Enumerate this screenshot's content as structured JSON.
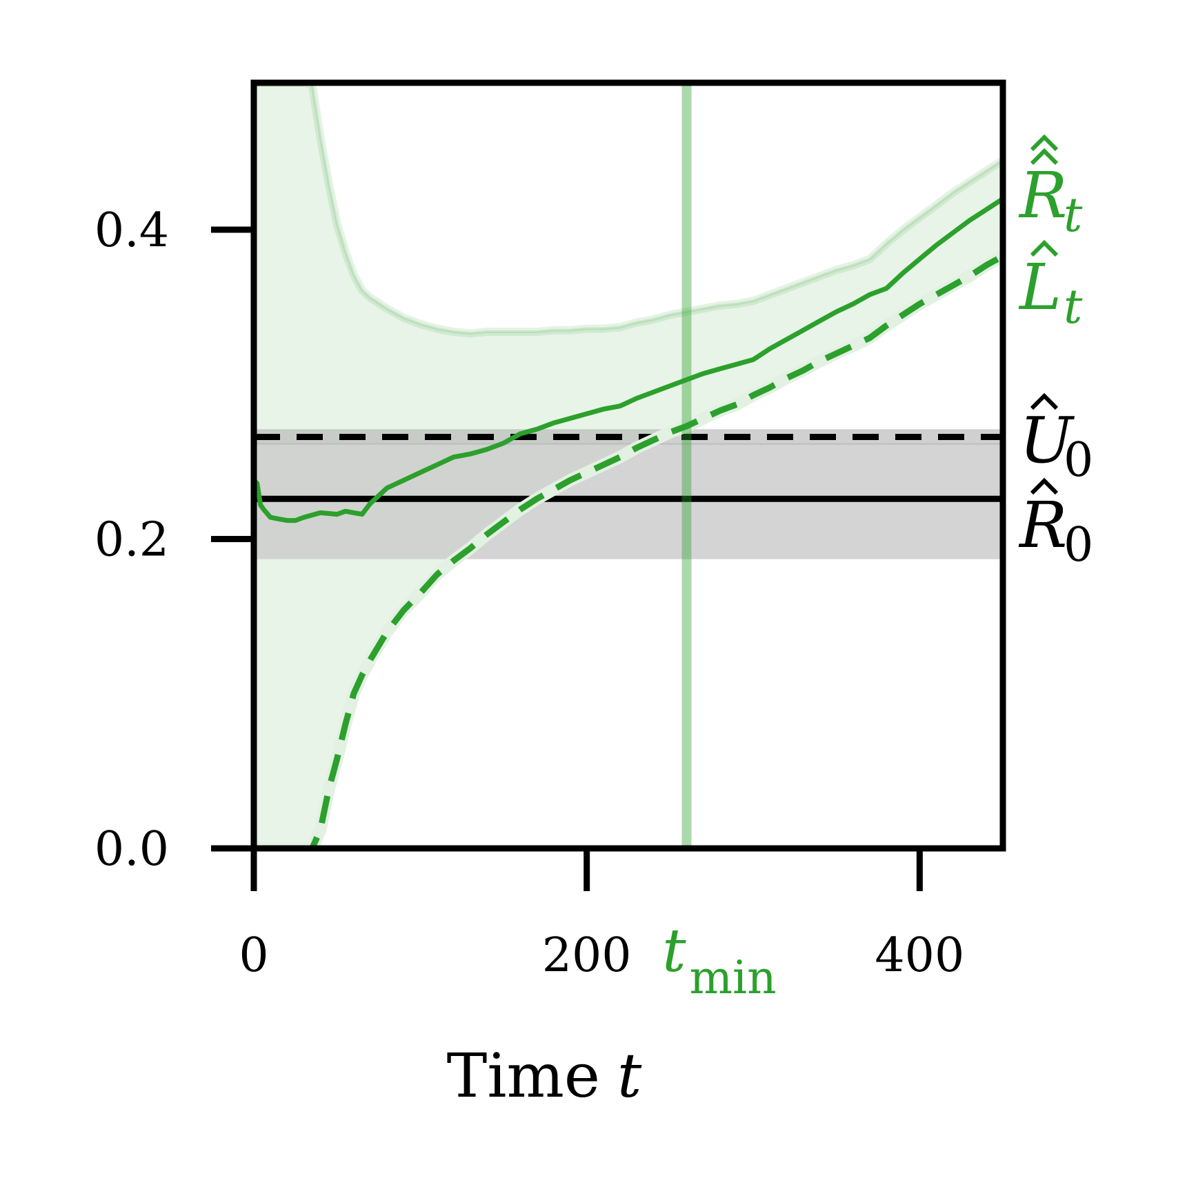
{
  "chart_data": {
    "type": "line",
    "xlabel": "Time",
    "xlabel_var": "t",
    "xlim": [
      0,
      450
    ],
    "ylim": [
      0.0,
      0.495
    ],
    "x_ticks": [
      0,
      200,
      400
    ],
    "x_tick_labels": [
      "0",
      "200",
      "400"
    ],
    "y_ticks": [
      0.0,
      0.2,
      0.4
    ],
    "y_tick_labels": [
      "0.0",
      "0.2",
      "0.4"
    ],
    "grid": false,
    "legend": "none",
    "colors": {
      "green": "#2ca02c",
      "green_band": "#e8f4e8",
      "gray_band": "#cccccc",
      "black": "#000000"
    },
    "t_min": {
      "x": 260,
      "label_main": "t",
      "label_sub": "min"
    },
    "reference_lines": [
      {
        "name": "U0",
        "label_main": "U",
        "label_sub": "0",
        "y": 0.266,
        "style": "dashed",
        "band": [
          0.261,
          0.271
        ]
      },
      {
        "name": "R0",
        "label_main": "R",
        "label_sub": "0",
        "y": 0.226,
        "style": "solid",
        "band": [
          0.187,
          0.262
        ]
      }
    ],
    "series": [
      {
        "name": "R_t",
        "label_main": "R",
        "label_sub": "t",
        "style": "solid",
        "x": [
          0,
          2,
          4,
          6,
          10,
          15,
          20,
          25,
          30,
          40,
          50,
          55,
          60,
          65,
          70,
          80,
          90,
          100,
          110,
          120,
          130,
          140,
          150,
          160,
          170,
          180,
          190,
          200,
          210,
          220,
          230,
          240,
          250,
          260,
          270,
          280,
          290,
          300,
          310,
          320,
          330,
          340,
          350,
          360,
          370,
          380,
          390,
          400,
          410,
          420,
          430,
          440,
          450
        ],
        "y": [
          0.238,
          0.236,
          0.222,
          0.219,
          0.214,
          0.213,
          0.212,
          0.212,
          0.214,
          0.217,
          0.216,
          0.218,
          0.217,
          0.216,
          0.223,
          0.233,
          0.238,
          0.243,
          0.248,
          0.253,
          0.255,
          0.258,
          0.262,
          0.268,
          0.271,
          0.275,
          0.278,
          0.281,
          0.284,
          0.286,
          0.291,
          0.295,
          0.299,
          0.303,
          0.307,
          0.31,
          0.313,
          0.316,
          0.323,
          0.329,
          0.335,
          0.341,
          0.347,
          0.352,
          0.358,
          0.362,
          0.372,
          0.381,
          0.39,
          0.398,
          0.406,
          0.413,
          0.42
        ]
      },
      {
        "name": "L_t",
        "label_main": "L",
        "label_sub": "t",
        "style": "dashed",
        "x": [
          0,
          10,
          20,
          30,
          35,
          40,
          45,
          50,
          55,
          60,
          65,
          70,
          80,
          90,
          100,
          110,
          120,
          130,
          140,
          150,
          160,
          170,
          180,
          190,
          200,
          210,
          220,
          230,
          240,
          250,
          260,
          270,
          280,
          290,
          300,
          310,
          320,
          330,
          340,
          350,
          360,
          370,
          380,
          390,
          400,
          410,
          420,
          430,
          440,
          450
        ],
        "y": [
          0.0,
          0.0,
          0.0,
          0.0,
          0.0,
          0.012,
          0.038,
          0.058,
          0.08,
          0.1,
          0.112,
          0.122,
          0.14,
          0.154,
          0.165,
          0.177,
          0.186,
          0.194,
          0.203,
          0.211,
          0.219,
          0.226,
          0.232,
          0.238,
          0.243,
          0.248,
          0.253,
          0.259,
          0.264,
          0.269,
          0.273,
          0.278,
          0.283,
          0.287,
          0.293,
          0.298,
          0.304,
          0.309,
          0.315,
          0.32,
          0.325,
          0.33,
          0.338,
          0.345,
          0.352,
          0.358,
          0.364,
          0.37,
          0.377,
          0.383
        ]
      },
      {
        "name": "R_t_upper",
        "label_main": "R",
        "label_sub": "t",
        "style": "band-upper",
        "x": [
          0,
          20,
          25,
          30,
          35,
          40,
          45,
          50,
          55,
          60,
          65,
          70,
          80,
          90,
          100,
          110,
          120,
          130,
          140,
          150,
          160,
          170,
          180,
          190,
          200,
          210,
          220,
          230,
          240,
          250,
          260,
          270,
          280,
          290,
          300,
          310,
          320,
          330,
          340,
          350,
          360,
          370,
          380,
          390,
          400,
          410,
          420,
          430,
          440,
          450
        ],
        "y": [
          0.495,
          0.495,
          0.495,
          0.495,
          0.494,
          0.46,
          0.43,
          0.404,
          0.386,
          0.371,
          0.361,
          0.356,
          0.349,
          0.343,
          0.339,
          0.336,
          0.334,
          0.333,
          0.334,
          0.334,
          0.334,
          0.334,
          0.335,
          0.335,
          0.336,
          0.336,
          0.337,
          0.34,
          0.342,
          0.345,
          0.347,
          0.349,
          0.351,
          0.352,
          0.354,
          0.358,
          0.362,
          0.366,
          0.37,
          0.374,
          0.377,
          0.381,
          0.391,
          0.4,
          0.408,
          0.416,
          0.424,
          0.431,
          0.438,
          0.445
        ]
      }
    ]
  }
}
